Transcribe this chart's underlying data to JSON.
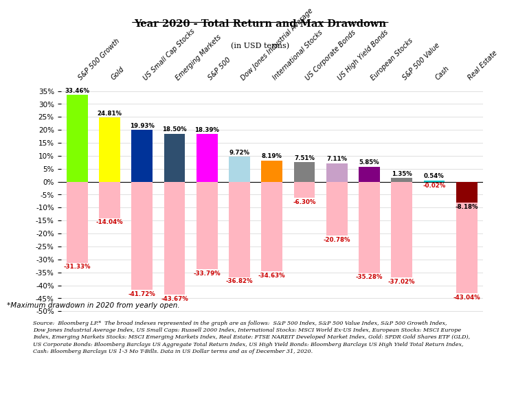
{
  "title": "Year 2020 - Total Return and Max Drawdown",
  "subtitle": "(in USD terms)",
  "categories": [
    "S&P 500 Growth",
    "Gold",
    "US Small Cap Stocks",
    "Emerging Markets",
    "S&P 500",
    "Dow Jones Industrial Average",
    "International Stocks",
    "US Corporate Bonds",
    "US High Yield Bonds",
    "European Stocks",
    "S&P 500 Value",
    "Cash",
    "Real Estate"
  ],
  "total_returns": [
    33.46,
    24.81,
    19.93,
    18.5,
    18.39,
    9.72,
    8.19,
    7.51,
    7.11,
    5.85,
    1.35,
    0.54,
    -8.18
  ],
  "max_drawdowns": [
    -31.33,
    -14.04,
    -41.72,
    -43.67,
    -33.79,
    -36.82,
    -34.63,
    -6.3,
    -20.78,
    -35.28,
    -37.02,
    -0.02,
    -43.04
  ],
  "bar_colors": [
    "#7FFF00",
    "#FFFF00",
    "#003399",
    "#2F4F6F",
    "#FF00FF",
    "#ADD8E6",
    "#FF8C00",
    "#808080",
    "#C8A0C8",
    "#800080",
    "#808080",
    "#00CED1",
    "#006400"
  ],
  "drawdown_color": "#FFB6C1",
  "negative_return_color": "#8B0000",
  "footnote": "*Maximum drawdown in 2020 from yearly open.",
  "source_text": "Source:  Bloomberg LP.*  The broad indexes represented in the graph are as follows:  S&P 500 Index, S&P 500 Value Index, S&P 500 Growth Index,\nDow Jones Industrial Average Index, US Small Caps: Russell 2000 Index, International Stocks: MSCI World Ex-US Index, European Stocks: MSCI Europe\nIndex, Emerging Markets Stocks: MSCI Emerging Markets Index, Real Estate: FTSE NAREIT Developed Market Index, Gold: SPDR Gold Shares ETF (GLD),\nUS Corporate Bonds: Bloomberg Barclays US Aggregate Total Return Index, US High Yield Bonds: Bloomberg Barclays US High Yield Total Return Index,\nCash: Bloomberg Barclays US 1-3 Mo T-Bills. Data in US Dollar terms and as of December 31, 2020."
}
